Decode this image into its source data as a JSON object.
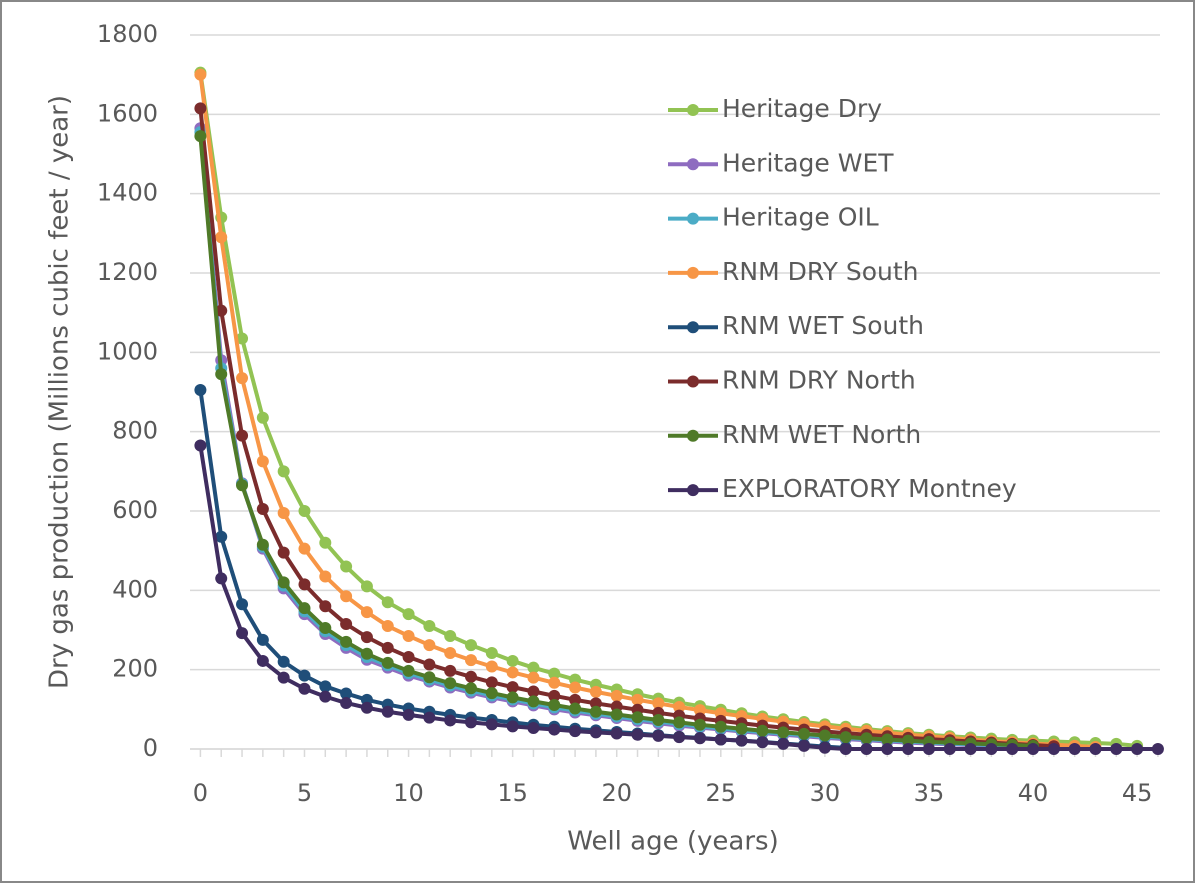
{
  "chart_data": {
    "type": "line",
    "y_label": "Dry gas production (Millions cubic feet / year)",
    "x_label": "Well age (years)",
    "x": [
      0,
      1,
      2,
      3,
      4,
      5,
      6,
      7,
      8,
      9,
      10,
      11,
      12,
      13,
      14,
      15,
      16,
      17,
      18,
      19,
      20,
      21,
      22,
      23,
      24,
      25,
      26,
      27,
      28,
      29,
      30,
      31,
      32,
      33,
      34,
      35,
      36,
      37,
      38,
      39,
      40,
      41,
      42,
      43,
      44,
      45,
      46
    ],
    "xlim": [
      -0.5,
      46.1
    ],
    "xticks": [
      0,
      5,
      10,
      15,
      20,
      25,
      30,
      35,
      40,
      45
    ],
    "ylim": [
      0,
      1800
    ],
    "yticks": [
      0,
      200,
      400,
      600,
      800,
      1000,
      1200,
      1400,
      1600,
      1800
    ],
    "grid": true,
    "legend": "upper right",
    "series": [
      {
        "name": "Heritage Dry",
        "color": "#92c353",
        "values": [
          1705,
          1340,
          1035,
          835,
          700,
          600,
          520,
          460,
          410,
          370,
          340,
          310,
          285,
          262,
          242,
          222,
          205,
          190,
          175,
          162,
          150,
          138,
          127,
          117,
          108,
          99,
          90,
          82,
          75,
          68,
          62,
          56,
          50,
          45,
          40,
          36,
          32,
          29,
          26,
          23,
          21,
          19,
          17,
          15,
          13,
          8,
          null
        ]
      },
      {
        "name": "Heritage WET",
        "color": "#8e6cc0",
        "values": [
          1565,
          980,
          670,
          505,
          405,
          340,
          290,
          255,
          225,
          205,
          185,
          170,
          155,
          142,
          130,
          120,
          110,
          100,
          92,
          85,
          78,
          71,
          65,
          59,
          54,
          49,
          44,
          40,
          36,
          32,
          28,
          25,
          22,
          19,
          16,
          14,
          12,
          10,
          8,
          6,
          5,
          null,
          null,
          null,
          null,
          null,
          null
        ]
      },
      {
        "name": "Heritage OIL",
        "color": "#4bacc6",
        "values": [
          1555,
          960,
          668,
          510,
          412,
          347,
          297,
          262,
          232,
          211,
          191,
          175,
          160,
          147,
          135,
          125,
          115,
          105,
          97,
          89,
          82,
          75,
          69,
          63,
          57,
          52,
          47,
          43,
          39,
          35,
          31,
          28,
          25,
          22,
          19,
          16,
          14,
          12,
          10,
          8,
          6,
          null,
          null,
          null,
          null,
          null,
          null
        ]
      },
      {
        "name": "RNM DRY South",
        "color": "#f79646",
        "values": [
          1700,
          1290,
          935,
          725,
          595,
          505,
          435,
          385,
          345,
          310,
          285,
          262,
          242,
          224,
          208,
          193,
          180,
          167,
          155,
          144,
          134,
          124,
          115,
          106,
          98,
          90,
          83,
          76,
          69,
          63,
          57,
          51,
          46,
          41,
          36,
          32,
          28,
          24,
          20,
          17,
          14,
          11,
          8,
          5,
          null,
          null,
          null
        ]
      },
      {
        "name": "RNM WET South",
        "color": "#1f4e79",
        "values": [
          905,
          535,
          365,
          275,
          220,
          185,
          158,
          140,
          124,
          112,
          102,
          94,
          86,
          79,
          73,
          67,
          61,
          56,
          51,
          47,
          43,
          39,
          35,
          31,
          28,
          24,
          21,
          18,
          14,
          10,
          6,
          3,
          null,
          null,
          null,
          null,
          null,
          null,
          null,
          null,
          null,
          null,
          null,
          null,
          null,
          null,
          null
        ]
      },
      {
        "name": "RNM DRY North",
        "color": "#7b2c2c",
        "values": [
          1615,
          1105,
          790,
          605,
          495,
          415,
          360,
          315,
          282,
          255,
          232,
          213,
          197,
          182,
          168,
          156,
          145,
          134,
          124,
          115,
          107,
          99,
          91,
          84,
          77,
          71,
          65,
          59,
          54,
          49,
          44,
          40,
          36,
          32,
          28,
          25,
          22,
          19,
          16,
          13,
          10,
          7,
          null,
          null,
          null,
          null,
          null
        ]
      },
      {
        "name": "RNM WET North",
        "color": "#4f7a28",
        "values": [
          1545,
          945,
          665,
          515,
          420,
          355,
          305,
          270,
          240,
          217,
          197,
          181,
          166,
          153,
          141,
          130,
          120,
          111,
          102,
          94,
          87,
          80,
          73,
          67,
          61,
          56,
          51,
          46,
          42,
          38,
          34,
          30,
          27,
          24,
          21,
          18,
          16,
          14,
          12,
          10,
          8,
          null,
          null,
          null,
          null,
          null,
          null
        ]
      },
      {
        "name": "EXPLORATORY Montney",
        "color": "#3f2d60",
        "values": [
          765,
          430,
          292,
          222,
          180,
          152,
          132,
          116,
          104,
          94,
          86,
          79,
          72,
          67,
          62,
          57,
          53,
          49,
          45,
          42,
          39,
          36,
          33,
          30,
          27,
          24,
          21,
          17,
          13,
          8,
          3,
          0,
          0,
          0,
          0,
          0,
          0,
          0,
          0,
          0,
          0,
          0,
          0,
          0,
          0,
          0,
          0
        ]
      }
    ]
  }
}
